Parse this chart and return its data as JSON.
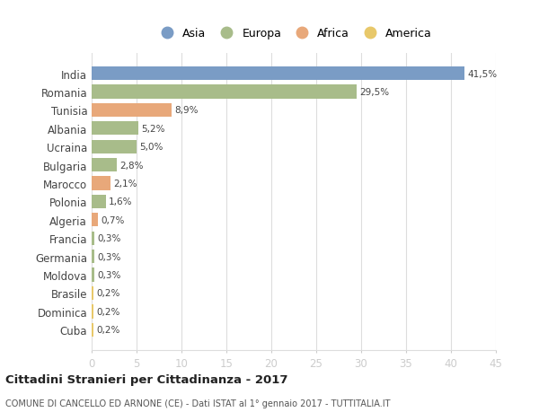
{
  "countries": [
    "India",
    "Romania",
    "Tunisia",
    "Albania",
    "Ucraina",
    "Bulgaria",
    "Marocco",
    "Polonia",
    "Algeria",
    "Francia",
    "Germania",
    "Moldova",
    "Brasile",
    "Dominica",
    "Cuba"
  ],
  "values": [
    41.5,
    29.5,
    8.9,
    5.2,
    5.0,
    2.8,
    2.1,
    1.6,
    0.7,
    0.3,
    0.3,
    0.3,
    0.2,
    0.2,
    0.2
  ],
  "labels": [
    "41,5%",
    "29,5%",
    "8,9%",
    "5,2%",
    "5,0%",
    "2,8%",
    "2,1%",
    "1,6%",
    "0,7%",
    "0,3%",
    "0,3%",
    "0,3%",
    "0,2%",
    "0,2%",
    "0,2%"
  ],
  "continents": [
    "Asia",
    "Europa",
    "Africa",
    "Europa",
    "Europa",
    "Europa",
    "Africa",
    "Europa",
    "Africa",
    "Europa",
    "Europa",
    "Europa",
    "America",
    "America",
    "America"
  ],
  "continent_colors": {
    "Asia": "#7a9cc5",
    "Europa": "#a8bc8a",
    "Africa": "#e8a87a",
    "America": "#e8c86a"
  },
  "legend_items": [
    "Asia",
    "Europa",
    "Africa",
    "America"
  ],
  "legend_colors": [
    "#7a9cc5",
    "#a8bc8a",
    "#e8a87a",
    "#e8c86a"
  ],
  "xlim": [
    0,
    45
  ],
  "xticks": [
    0,
    5,
    10,
    15,
    20,
    25,
    30,
    35,
    40,
    45
  ],
  "title": "Cittadini Stranieri per Cittadinanza - 2017",
  "subtitle": "COMUNE DI CANCELLO ED ARNONE (CE) - Dati ISTAT al 1° gennaio 2017 - TUTTITALIA.IT",
  "bg_color": "#ffffff",
  "grid_color": "#dddddd",
  "bar_height": 0.75
}
